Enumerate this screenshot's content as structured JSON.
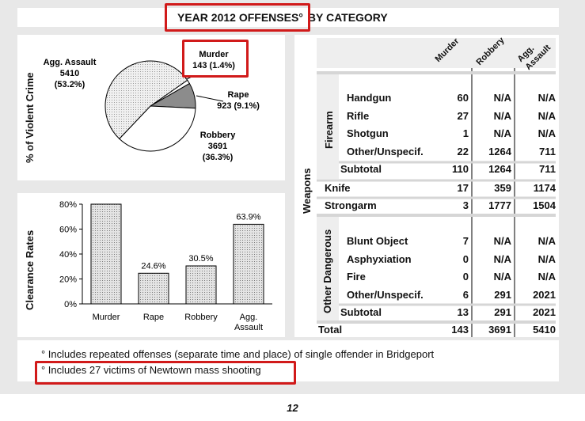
{
  "title": {
    "main": "YEAR 2012 OFFENSES°",
    "suffix": "BY CATEGORY"
  },
  "pie_panel": {
    "ylabel": "% of Violent Crime"
  },
  "bar_panel": {
    "ylabel": "Clearance Rates"
  },
  "weapons_panel": {
    "label": "Weapons"
  },
  "chart_data": [
    {
      "type": "pie",
      "ylabel": "% of Violent Crime",
      "slices": [
        {
          "name": "Murder",
          "count": "143",
          "pct": "(1.4%)",
          "value": 1.4,
          "fill": "#ffffff"
        },
        {
          "name": "Rape",
          "count": "923",
          "pct": "(9.1%)",
          "value": 9.1,
          "fill": "#8c8c8c"
        },
        {
          "name": "Robbery",
          "count": "3691",
          "pct": "(36.3%)",
          "value": 36.3,
          "fill": "#ffffff"
        },
        {
          "name": "Agg. Assault",
          "count": "5410",
          "pct": "(53.2%)",
          "value": 53.2,
          "fill": "#d9d9d9"
        }
      ],
      "labels": {
        "murder": "Murder",
        "murder_value": "143 (1.4%)",
        "rape": "Rape",
        "rape_value": "923 (9.1%)",
        "robbery": "Robbery",
        "robbery_count": "3691",
        "robbery_pct": "(36.3%)",
        "assault": "Agg. Assault",
        "assault_count": "5410",
        "assault_pct": "(53.2%)"
      }
    },
    {
      "type": "bar",
      "ylabel": "Clearance Rates",
      "categories": [
        "Murder",
        "Rape",
        "Robbery",
        "Agg. Assault"
      ],
      "category_lines": [
        [
          "Murder"
        ],
        [
          "Rape"
        ],
        [
          "Robbery"
        ],
        [
          "Agg.",
          "Assault"
        ]
      ],
      "values": [
        80,
        24.6,
        30.5,
        63.9
      ],
      "value_labels": [
        "",
        "24.6%",
        "30.5%",
        "63.9%"
      ],
      "ylim": [
        0,
        80
      ],
      "yticks": [
        0,
        20,
        40,
        60,
        80
      ],
      "ytick_labels": [
        "0%",
        "20%",
        "40%",
        "60%",
        "80%"
      ],
      "bar_fill": "#d4d4d4",
      "bar_stroke": "#000000"
    },
    {
      "type": "table",
      "columns": [
        "Murder",
        "Robbery",
        "Agg. Assault"
      ],
      "column_head_lines": [
        [
          "Murder"
        ],
        [
          "Robbery"
        ],
        [
          "Agg.",
          "Assault"
        ]
      ],
      "groups": {
        "firearm": "Firearm",
        "other_dangerous": "Other Dangerous"
      },
      "rows": [
        {
          "label": "Handgun",
          "values": [
            "60",
            "N/A",
            "N/A"
          ]
        },
        {
          "label": "Rifle",
          "values": [
            "27",
            "N/A",
            "N/A"
          ]
        },
        {
          "label": "Shotgun",
          "values": [
            "1",
            "N/A",
            "N/A"
          ]
        },
        {
          "label": "Other/Unspecif.",
          "values": [
            "22",
            "1264",
            "711"
          ]
        },
        {
          "label": "Subtotal",
          "values": [
            "110",
            "1264",
            "711"
          ]
        },
        {
          "label": "Knife",
          "values": [
            "17",
            "359",
            "1174"
          ]
        },
        {
          "label": "Strongarm",
          "values": [
            "3",
            "1777",
            "1504"
          ]
        },
        {
          "label": "Blunt Object",
          "values": [
            "7",
            "N/A",
            "N/A"
          ]
        },
        {
          "label": "Asphyxiation",
          "values": [
            "0",
            "N/A",
            "N/A"
          ]
        },
        {
          "label": "Fire",
          "values": [
            "0",
            "N/A",
            "N/A"
          ]
        },
        {
          "label": "Other/Unspecif.",
          "values": [
            "6",
            "291",
            "2021"
          ]
        },
        {
          "label": "Subtotal",
          "values": [
            "13",
            "291",
            "2021"
          ]
        },
        {
          "label": "Total",
          "values": [
            "143",
            "3691",
            "5410"
          ]
        }
      ]
    }
  ],
  "notes": [
    "° Includes repeated offenses (separate time and place) of single offender in Bridgeport",
    "° Includes 27 victims of Newtown mass shooting"
  ],
  "page_number": "12",
  "highlight_color": "#d11a1a"
}
